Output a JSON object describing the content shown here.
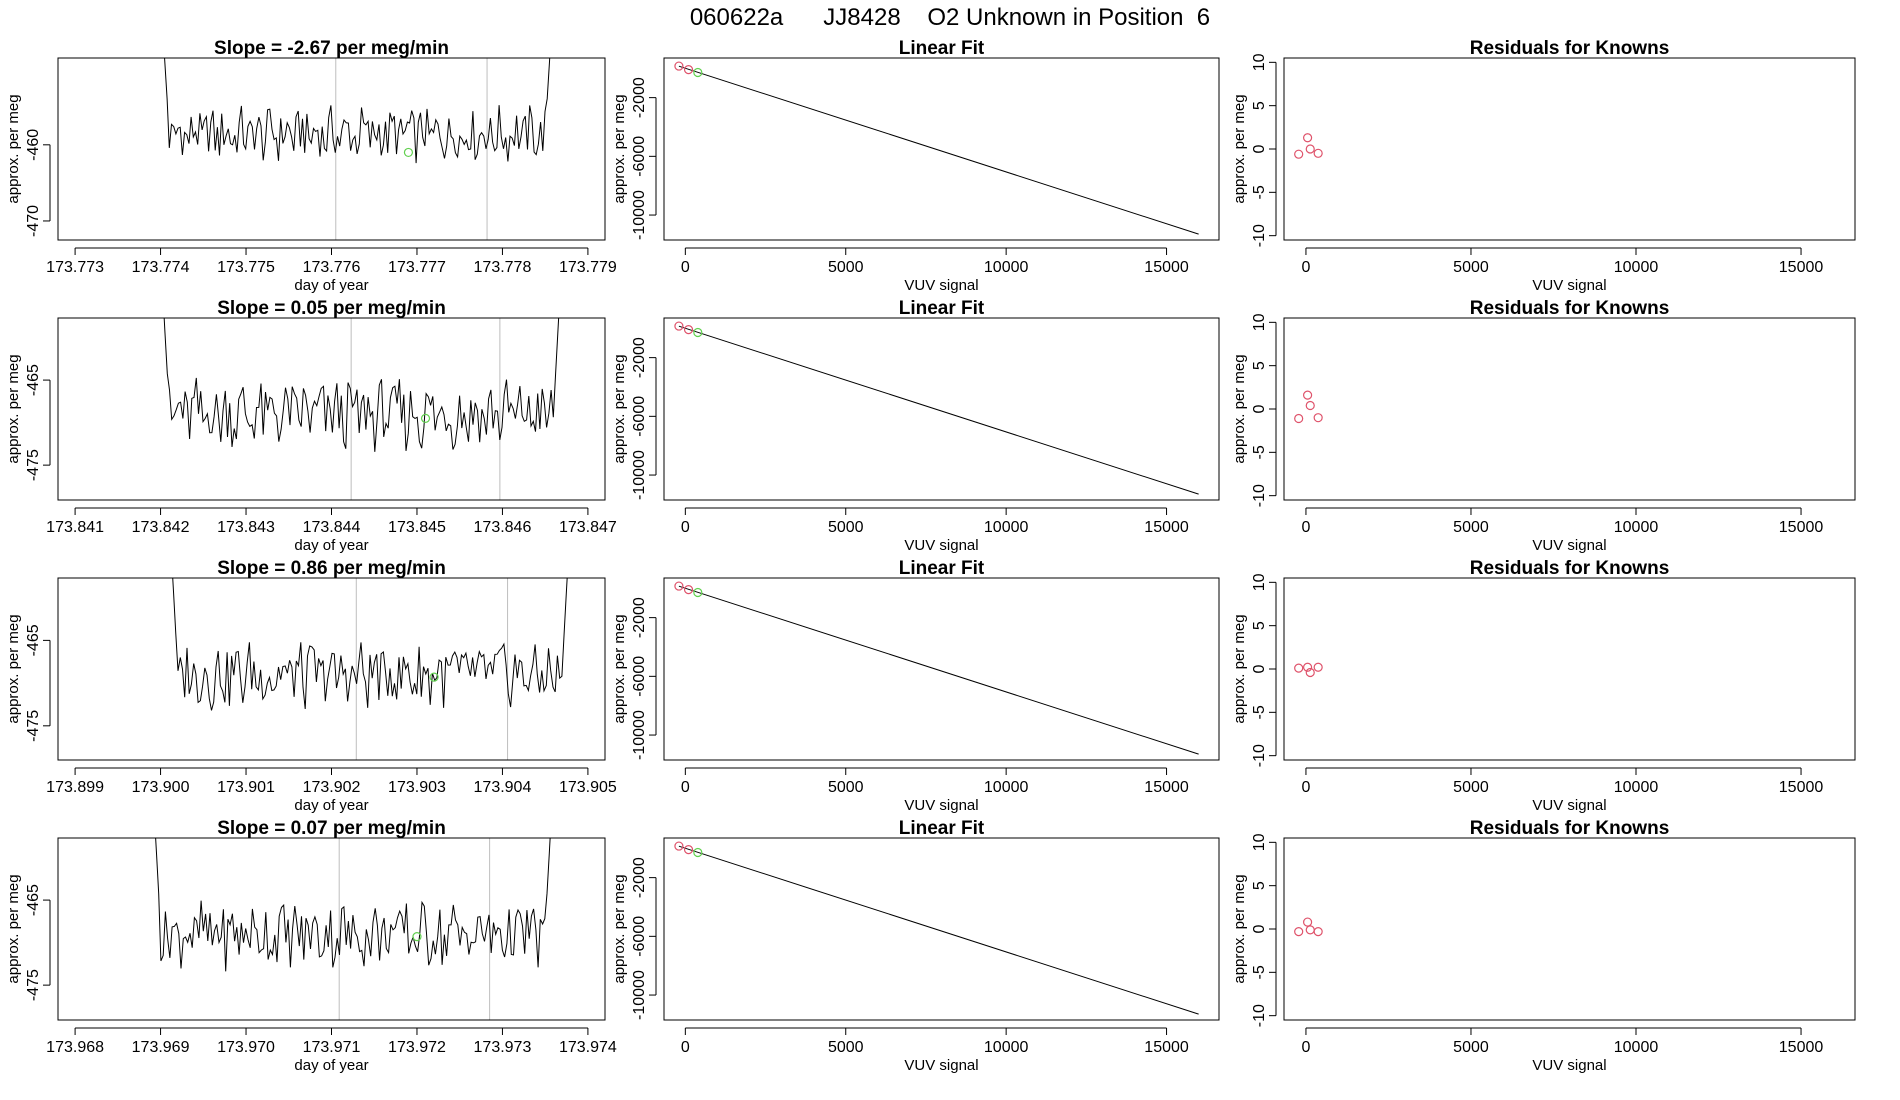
{
  "title": "060622a      JJ8428    O2 Unknown in Position  6",
  "colors": {
    "line": "#000000",
    "gridline": "#bebebe",
    "known_point": "#df536b",
    "unknown_point": "#61d04f",
    "frame": "#000000"
  },
  "chart_data": [
    {
      "type": "line",
      "panel": "time-series",
      "row": 1,
      "title": "Slope =  -2.67  per meg/min",
      "xlabel": "day of year",
      "ylabel": "approx. per meg",
      "xlim": [
        173.7728,
        173.7792
      ],
      "ylim": [
        -472.5,
        -448.6
      ],
      "xticks": [
        173.773,
        173.774,
        173.775,
        173.776,
        173.777,
        173.778,
        173.779
      ],
      "xtick_labels": [
        "173.773",
        "173.774",
        "173.775",
        "173.776",
        "173.777",
        "173.778",
        "173.779"
      ],
      "yticks": [
        -460,
        -470
      ],
      "ytick_labels": [
        "-460",
        "-470"
      ],
      "vlines": [
        173.77605,
        173.77782
      ],
      "series_start": 173.774,
      "series_end": 173.7786,
      "series_mean": -458.6,
      "series_amp": 2.0,
      "edge_value": -440.0,
      "unknown_point": {
        "x": 173.7769,
        "y": -461.0
      }
    },
    {
      "type": "line",
      "panel": "time-series",
      "row": 2,
      "title": "Slope =  0.05  per meg/min",
      "xlabel": "day of year",
      "ylabel": "approx. per meg",
      "xlim": [
        173.8408,
        173.8472
      ],
      "ylim": [
        -479.1,
        -457.7
      ],
      "xticks": [
        173.841,
        173.842,
        173.843,
        173.844,
        173.845,
        173.846,
        173.847
      ],
      "xtick_labels": [
        "173.841",
        "173.842",
        "173.843",
        "173.844",
        "173.845",
        "173.846",
        "173.847"
      ],
      "yticks": [
        -465,
        -475
      ],
      "ytick_labels": [
        "-465",
        "-475"
      ],
      "vlines": [
        173.84423,
        173.84597
      ],
      "series_start": 173.842,
      "series_end": 173.8467,
      "series_mean": -469.0,
      "series_amp": 2.3,
      "edge_value": -450.0,
      "unknown_point": {
        "x": 173.8451,
        "y": -469.5
      }
    },
    {
      "type": "line",
      "panel": "time-series",
      "row": 3,
      "title": "Slope =  0.86  per meg/min",
      "xlabel": "day of year",
      "ylabel": "approx. per meg",
      "xlim": [
        173.8988,
        173.9052
      ],
      "ylim": [
        -479.0,
        -457.7
      ],
      "xticks": [
        173.899,
        173.9,
        173.901,
        173.902,
        173.903,
        173.904,
        173.905
      ],
      "xtick_labels": [
        "173.899",
        "173.900",
        "173.901",
        "173.902",
        "173.903",
        "173.904",
        "173.905"
      ],
      "yticks": [
        -465,
        -475
      ],
      "ytick_labels": [
        "-465",
        "-475"
      ],
      "vlines": [
        173.90229,
        173.90406
      ],
      "series_start": 173.9001,
      "series_end": 173.9048,
      "series_mean": -469.0,
      "series_amp": 2.2,
      "edge_value": -450.0,
      "unknown_point": {
        "x": 173.9032,
        "y": -469.3
      }
    },
    {
      "type": "line",
      "panel": "time-series",
      "row": 4,
      "title": "Slope =  0.07  per meg/min",
      "xlabel": "day of year",
      "ylabel": "approx. per meg",
      "xlim": [
        173.9678,
        173.9742
      ],
      "ylim": [
        -479.1,
        -457.7
      ],
      "xticks": [
        173.968,
        173.969,
        173.97,
        173.971,
        173.972,
        173.973,
        173.974
      ],
      "xtick_labels": [
        "173.968",
        "173.969",
        "173.970",
        "173.971",
        "173.972",
        "173.973",
        "173.974"
      ],
      "yticks": [
        -465,
        -475
      ],
      "ytick_labels": [
        "-465",
        "-475"
      ],
      "vlines": [
        173.97109,
        173.97285
      ],
      "series_start": 173.9689,
      "series_end": 173.9736,
      "series_mean": -469.0,
      "series_amp": 2.2,
      "edge_value": -450.0,
      "unknown_point": {
        "x": 173.972,
        "y": -469.3
      }
    },
    {
      "type": "scatter",
      "panel": "linear-fit",
      "row": 1,
      "title": "Linear Fit",
      "xlabel": "VUV signal",
      "ylabel": "approx. per meg",
      "xlim": [
        -665,
        16635
      ],
      "ylim": [
        -11700,
        700
      ],
      "xticks": [
        0,
        5000,
        10000,
        15000
      ],
      "xtick_labels": [
        "0",
        "5000",
        "10000",
        "15000"
      ],
      "yticks": [
        -2000,
        -6000,
        -10000
      ],
      "ytick_labels": [
        "-2000",
        "-6000",
        "-10000"
      ],
      "fit_line": {
        "x": [
          -200,
          16000
        ],
        "y": [
          143,
          -11300
        ]
      },
      "known_points": [
        {
          "x": -200,
          "y": 150
        },
        {
          "x": 100,
          "y": -90
        }
      ],
      "unknown_points": [
        {
          "x": 390,
          "y": -290
        }
      ]
    },
    {
      "type": "scatter",
      "panel": "linear-fit",
      "row": 2,
      "title": "Linear Fit",
      "xlabel": "VUV signal",
      "ylabel": "approx. per meg",
      "xlim": [
        -665,
        16635
      ],
      "ylim": [
        -11700,
        700
      ],
      "xticks": [
        0,
        5000,
        10000,
        15000
      ],
      "xtick_labels": [
        "0",
        "5000",
        "10000",
        "15000"
      ],
      "yticks": [
        -2000,
        -6000,
        -10000
      ],
      "ytick_labels": [
        "-2000",
        "-6000",
        "-10000"
      ],
      "fit_line": {
        "x": [
          -200,
          16000
        ],
        "y": [
          143,
          -11300
        ]
      },
      "known_points": [
        {
          "x": -200,
          "y": 150
        },
        {
          "x": 100,
          "y": -90
        }
      ],
      "unknown_points": [
        {
          "x": 390,
          "y": -290
        }
      ]
    },
    {
      "type": "scatter",
      "panel": "linear-fit",
      "row": 3,
      "title": "Linear Fit",
      "xlabel": "VUV signal",
      "ylabel": "approx. per meg",
      "xlim": [
        -665,
        16635
      ],
      "ylim": [
        -11700,
        700
      ],
      "xticks": [
        0,
        5000,
        10000,
        15000
      ],
      "xtick_labels": [
        "0",
        "5000",
        "10000",
        "15000"
      ],
      "yticks": [
        -2000,
        -6000,
        -10000
      ],
      "ytick_labels": [
        "-2000",
        "-6000",
        "-10000"
      ],
      "fit_line": {
        "x": [
          -200,
          16000
        ],
        "y": [
          143,
          -11300
        ]
      },
      "known_points": [
        {
          "x": -200,
          "y": 150
        },
        {
          "x": 100,
          "y": -90
        }
      ],
      "unknown_points": [
        {
          "x": 390,
          "y": -290
        }
      ]
    },
    {
      "type": "scatter",
      "panel": "linear-fit",
      "row": 4,
      "title": "Linear Fit",
      "xlabel": "VUV signal",
      "ylabel": "approx. per meg",
      "xlim": [
        -665,
        16635
      ],
      "ylim": [
        -11700,
        700
      ],
      "xticks": [
        0,
        5000,
        10000,
        15000
      ],
      "xtick_labels": [
        "0",
        "5000",
        "10000",
        "15000"
      ],
      "yticks": [
        -2000,
        -6000,
        -10000
      ],
      "ytick_labels": [
        "-2000",
        "-6000",
        "-10000"
      ],
      "fit_line": {
        "x": [
          -200,
          16000
        ],
        "y": [
          143,
          -11300
        ]
      },
      "known_points": [
        {
          "x": -200,
          "y": 150
        },
        {
          "x": 100,
          "y": -90
        }
      ],
      "unknown_points": [
        {
          "x": 390,
          "y": -290
        }
      ]
    },
    {
      "type": "scatter",
      "panel": "residuals",
      "row": 1,
      "title": "Residuals for Knowns",
      "xlabel": "VUV signal",
      "ylabel": "approx. per meg",
      "xlim": [
        -665,
        16635
      ],
      "ylim": [
        -10.5,
        10.5
      ],
      "xticks": [
        0,
        5000,
        10000,
        15000
      ],
      "xtick_labels": [
        "0",
        "5000",
        "10000",
        "15000"
      ],
      "yticks": [
        10,
        5,
        0,
        -5,
        -10
      ],
      "ytick_labels": [
        "10",
        "5",
        "0",
        "-5",
        "-10"
      ],
      "known_points": [
        {
          "x": -220,
          "y": -0.6
        },
        {
          "x": 50,
          "y": 1.3
        },
        {
          "x": 130,
          "y": 0.0
        },
        {
          "x": 370,
          "y": -0.5
        }
      ]
    },
    {
      "type": "scatter",
      "panel": "residuals",
      "row": 2,
      "title": "Residuals for Knowns",
      "xlabel": "VUV signal",
      "ylabel": "approx. per meg",
      "xlim": [
        -665,
        16635
      ],
      "ylim": [
        -10.5,
        10.5
      ],
      "xticks": [
        0,
        5000,
        10000,
        15000
      ],
      "xtick_labels": [
        "0",
        "5000",
        "10000",
        "15000"
      ],
      "yticks": [
        10,
        5,
        0,
        -5,
        -10
      ],
      "ytick_labels": [
        "10",
        "5",
        "0",
        "-5",
        "-10"
      ],
      "known_points": [
        {
          "x": -220,
          "y": -1.1
        },
        {
          "x": 50,
          "y": 1.6
        },
        {
          "x": 130,
          "y": 0.4
        },
        {
          "x": 370,
          "y": -1.0
        }
      ]
    },
    {
      "type": "scatter",
      "panel": "residuals",
      "row": 3,
      "title": "Residuals for Knowns",
      "xlabel": "VUV signal",
      "ylabel": "approx. per meg",
      "xlim": [
        -665,
        16635
      ],
      "ylim": [
        -10.5,
        10.5
      ],
      "xticks": [
        0,
        5000,
        10000,
        15000
      ],
      "xtick_labels": [
        "0",
        "5000",
        "10000",
        "15000"
      ],
      "yticks": [
        10,
        5,
        0,
        -5,
        -10
      ],
      "ytick_labels": [
        "10",
        "5",
        "0",
        "-5",
        "-10"
      ],
      "known_points": [
        {
          "x": -220,
          "y": 0.1
        },
        {
          "x": 50,
          "y": 0.2
        },
        {
          "x": 130,
          "y": -0.4
        },
        {
          "x": 370,
          "y": 0.2
        }
      ]
    },
    {
      "type": "scatter",
      "panel": "residuals",
      "row": 4,
      "title": "Residuals for Knowns",
      "xlabel": "VUV signal",
      "ylabel": "approx. per meg",
      "xlim": [
        -665,
        16635
      ],
      "ylim": [
        -10.5,
        10.5
      ],
      "xticks": [
        0,
        5000,
        10000,
        15000
      ],
      "xtick_labels": [
        "0",
        "5000",
        "10000",
        "15000"
      ],
      "yticks": [
        10,
        5,
        0,
        -5,
        -10
      ],
      "ytick_labels": [
        "10",
        "5",
        "0",
        "-5",
        "-10"
      ],
      "known_points": [
        {
          "x": -220,
          "y": -0.3
        },
        {
          "x": 50,
          "y": 0.8
        },
        {
          "x": 130,
          "y": -0.1
        },
        {
          "x": 370,
          "y": -0.3
        }
      ]
    }
  ]
}
